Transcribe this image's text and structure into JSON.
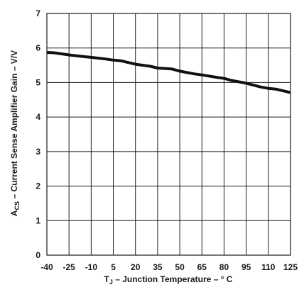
{
  "chart_data": {
    "type": "line",
    "title": "",
    "xlabel": {
      "main": "T",
      "sub": "J",
      "rest": " – Junction Temperature – ° C"
    },
    "ylabel": {
      "main": "A",
      "sub": "CS",
      "rest": " – Current Sense Amplifier Gain – V/V"
    },
    "xlim": [
      -40,
      125
    ],
    "ylim": [
      0,
      7
    ],
    "x_ticks": [
      -40,
      -25,
      -10,
      5,
      20,
      35,
      50,
      65,
      80,
      95,
      110,
      125
    ],
    "y_ticks": [
      0,
      1,
      2,
      3,
      4,
      5,
      6,
      7
    ],
    "grid": true,
    "series": [
      {
        "x": [
          -40,
          -35,
          -25,
          -15,
          -10,
          0,
          5,
          10,
          20,
          30,
          35,
          45,
          50,
          60,
          65,
          75,
          80,
          85,
          95,
          105,
          110,
          115,
          125
        ],
        "y": [
          5.87,
          5.86,
          5.8,
          5.75,
          5.73,
          5.68,
          5.65,
          5.63,
          5.53,
          5.47,
          5.42,
          5.39,
          5.33,
          5.25,
          5.22,
          5.15,
          5.12,
          5.06,
          4.98,
          4.87,
          4.83,
          4.81,
          4.71
        ]
      }
    ]
  }
}
